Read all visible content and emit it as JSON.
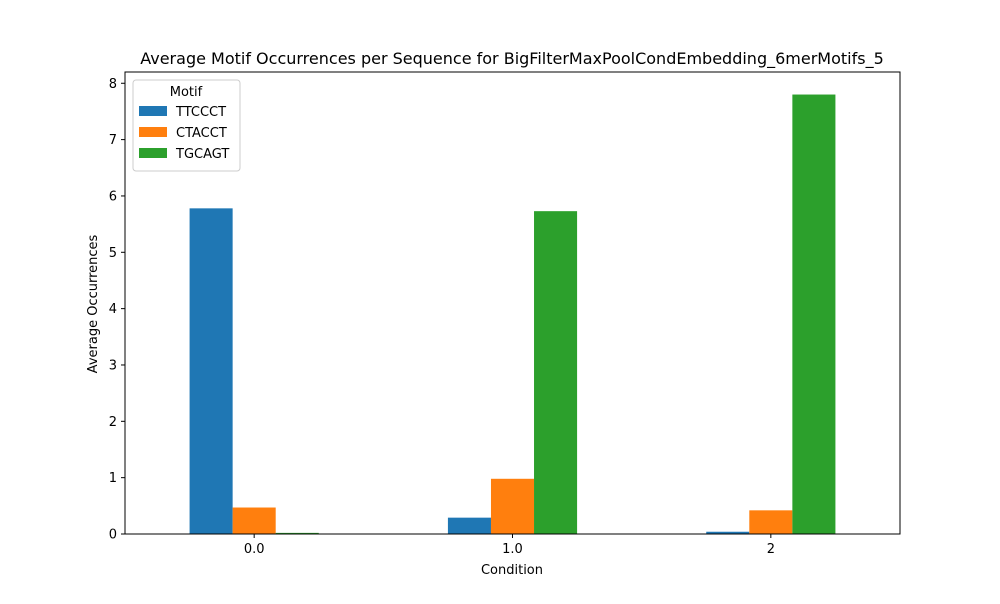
{
  "chart_data": {
    "type": "bar",
    "title": "Average Motif Occurrences per Sequence for BigFilterMaxPoolCondEmbedding_6merMotifs_5",
    "xlabel": "Condition",
    "ylabel": "Average Occurrences",
    "categories": [
      "0.0",
      "1.0",
      "2"
    ],
    "ylim": [
      0,
      8.2
    ],
    "yticks": [
      "0",
      "1",
      "2",
      "3",
      "4",
      "5",
      "6",
      "7",
      "8"
    ],
    "grid": false,
    "legend": {
      "title": "Motif",
      "placement": "top-left"
    },
    "series": [
      {
        "name": "TTCCCT",
        "color": "#1f77b4",
        "values": [
          5.78,
          0.29,
          0.04
        ]
      },
      {
        "name": "CTACCT",
        "color": "#ff7f0e",
        "values": [
          0.47,
          0.98,
          0.42
        ]
      },
      {
        "name": "TGCAGT",
        "color": "#2ca02c",
        "values": [
          0.02,
          5.73,
          7.8
        ]
      }
    ]
  }
}
